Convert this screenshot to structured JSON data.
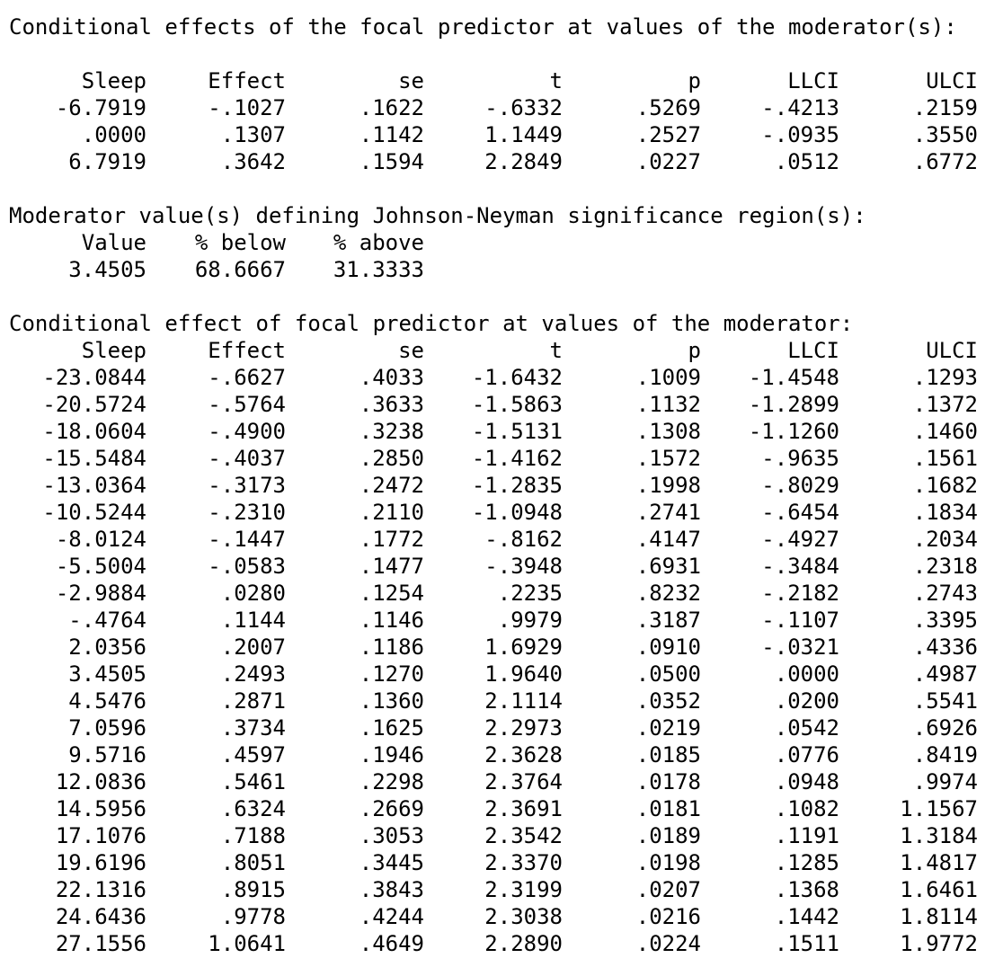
{
  "section1": {
    "heading": "Conditional effects of the focal predictor at values of the moderator(s):",
    "columns": [
      "Sleep",
      "Effect",
      "se",
      "t",
      "p",
      "LLCI",
      "ULCI"
    ],
    "rows": [
      [
        "-6.7919",
        "-.1027",
        ".1622",
        "-.6332",
        ".5269",
        "-.4213",
        ".2159"
      ],
      [
        ".0000",
        ".1307",
        ".1142",
        "1.1449",
        ".2527",
        "-.0935",
        ".3550"
      ],
      [
        "6.7919",
        ".3642",
        ".1594",
        "2.2849",
        ".0227",
        ".0512",
        ".6772"
      ]
    ]
  },
  "section2": {
    "heading": "Moderator value(s) defining Johnson-Neyman significance region(s):",
    "columns": [
      "Value",
      "% below",
      "% above"
    ],
    "row": [
      "3.4505",
      "68.6667",
      "31.3333"
    ]
  },
  "section3": {
    "heading": "Conditional effect of focal predictor at values of the moderator:",
    "columns": [
      "Sleep",
      "Effect",
      "se",
      "t",
      "p",
      "LLCI",
      "ULCI"
    ],
    "rows": [
      [
        "-23.0844",
        "-.6627",
        ".4033",
        "-1.6432",
        ".1009",
        "-1.4548",
        ".1293"
      ],
      [
        "-20.5724",
        "-.5764",
        ".3633",
        "-1.5863",
        ".1132",
        "-1.2899",
        ".1372"
      ],
      [
        "-18.0604",
        "-.4900",
        ".3238",
        "-1.5131",
        ".1308",
        "-1.1260",
        ".1460"
      ],
      [
        "-15.5484",
        "-.4037",
        ".2850",
        "-1.4162",
        ".1572",
        "-.9635",
        ".1561"
      ],
      [
        "-13.0364",
        "-.3173",
        ".2472",
        "-1.2835",
        ".1998",
        "-.8029",
        ".1682"
      ],
      [
        "-10.5244",
        "-.2310",
        ".2110",
        "-1.0948",
        ".2741",
        "-.6454",
        ".1834"
      ],
      [
        "-8.0124",
        "-.1447",
        ".1772",
        "-.8162",
        ".4147",
        "-.4927",
        ".2034"
      ],
      [
        "-5.5004",
        "-.0583",
        ".1477",
        "-.3948",
        ".6931",
        "-.3484",
        ".2318"
      ],
      [
        "-2.9884",
        ".0280",
        ".1254",
        ".2235",
        ".8232",
        "-.2182",
        ".2743"
      ],
      [
        "-.4764",
        ".1144",
        ".1146",
        ".9979",
        ".3187",
        "-.1107",
        ".3395"
      ],
      [
        "2.0356",
        ".2007",
        ".1186",
        "1.6929",
        ".0910",
        "-.0321",
        ".4336"
      ],
      [
        "3.4505",
        ".2493",
        ".1270",
        "1.9640",
        ".0500",
        ".0000",
        ".4987"
      ],
      [
        "4.5476",
        ".2871",
        ".1360",
        "2.1114",
        ".0352",
        ".0200",
        ".5541"
      ],
      [
        "7.0596",
        ".3734",
        ".1625",
        "2.2973",
        ".0219",
        ".0542",
        ".6926"
      ],
      [
        "9.5716",
        ".4597",
        ".1946",
        "2.3628",
        ".0185",
        ".0776",
        ".8419"
      ],
      [
        "12.0836",
        ".5461",
        ".2298",
        "2.3764",
        ".0178",
        ".0948",
        ".9974"
      ],
      [
        "14.5956",
        ".6324",
        ".2669",
        "2.3691",
        ".0181",
        ".1082",
        "1.1567"
      ],
      [
        "17.1076",
        ".7188",
        ".3053",
        "2.3542",
        ".0189",
        ".1191",
        "1.3184"
      ],
      [
        "19.6196",
        ".8051",
        ".3445",
        "2.3370",
        ".0198",
        ".1285",
        "1.4817"
      ],
      [
        "22.1316",
        ".8915",
        ".3843",
        "2.3199",
        ".0207",
        ".1368",
        "1.6461"
      ],
      [
        "24.6436",
        ".9778",
        ".4244",
        "2.3038",
        ".0216",
        ".1442",
        "1.8114"
      ],
      [
        "27.1556",
        "1.0641",
        ".4649",
        "2.2890",
        ".0224",
        ".1511",
        "1.9772"
      ]
    ]
  }
}
